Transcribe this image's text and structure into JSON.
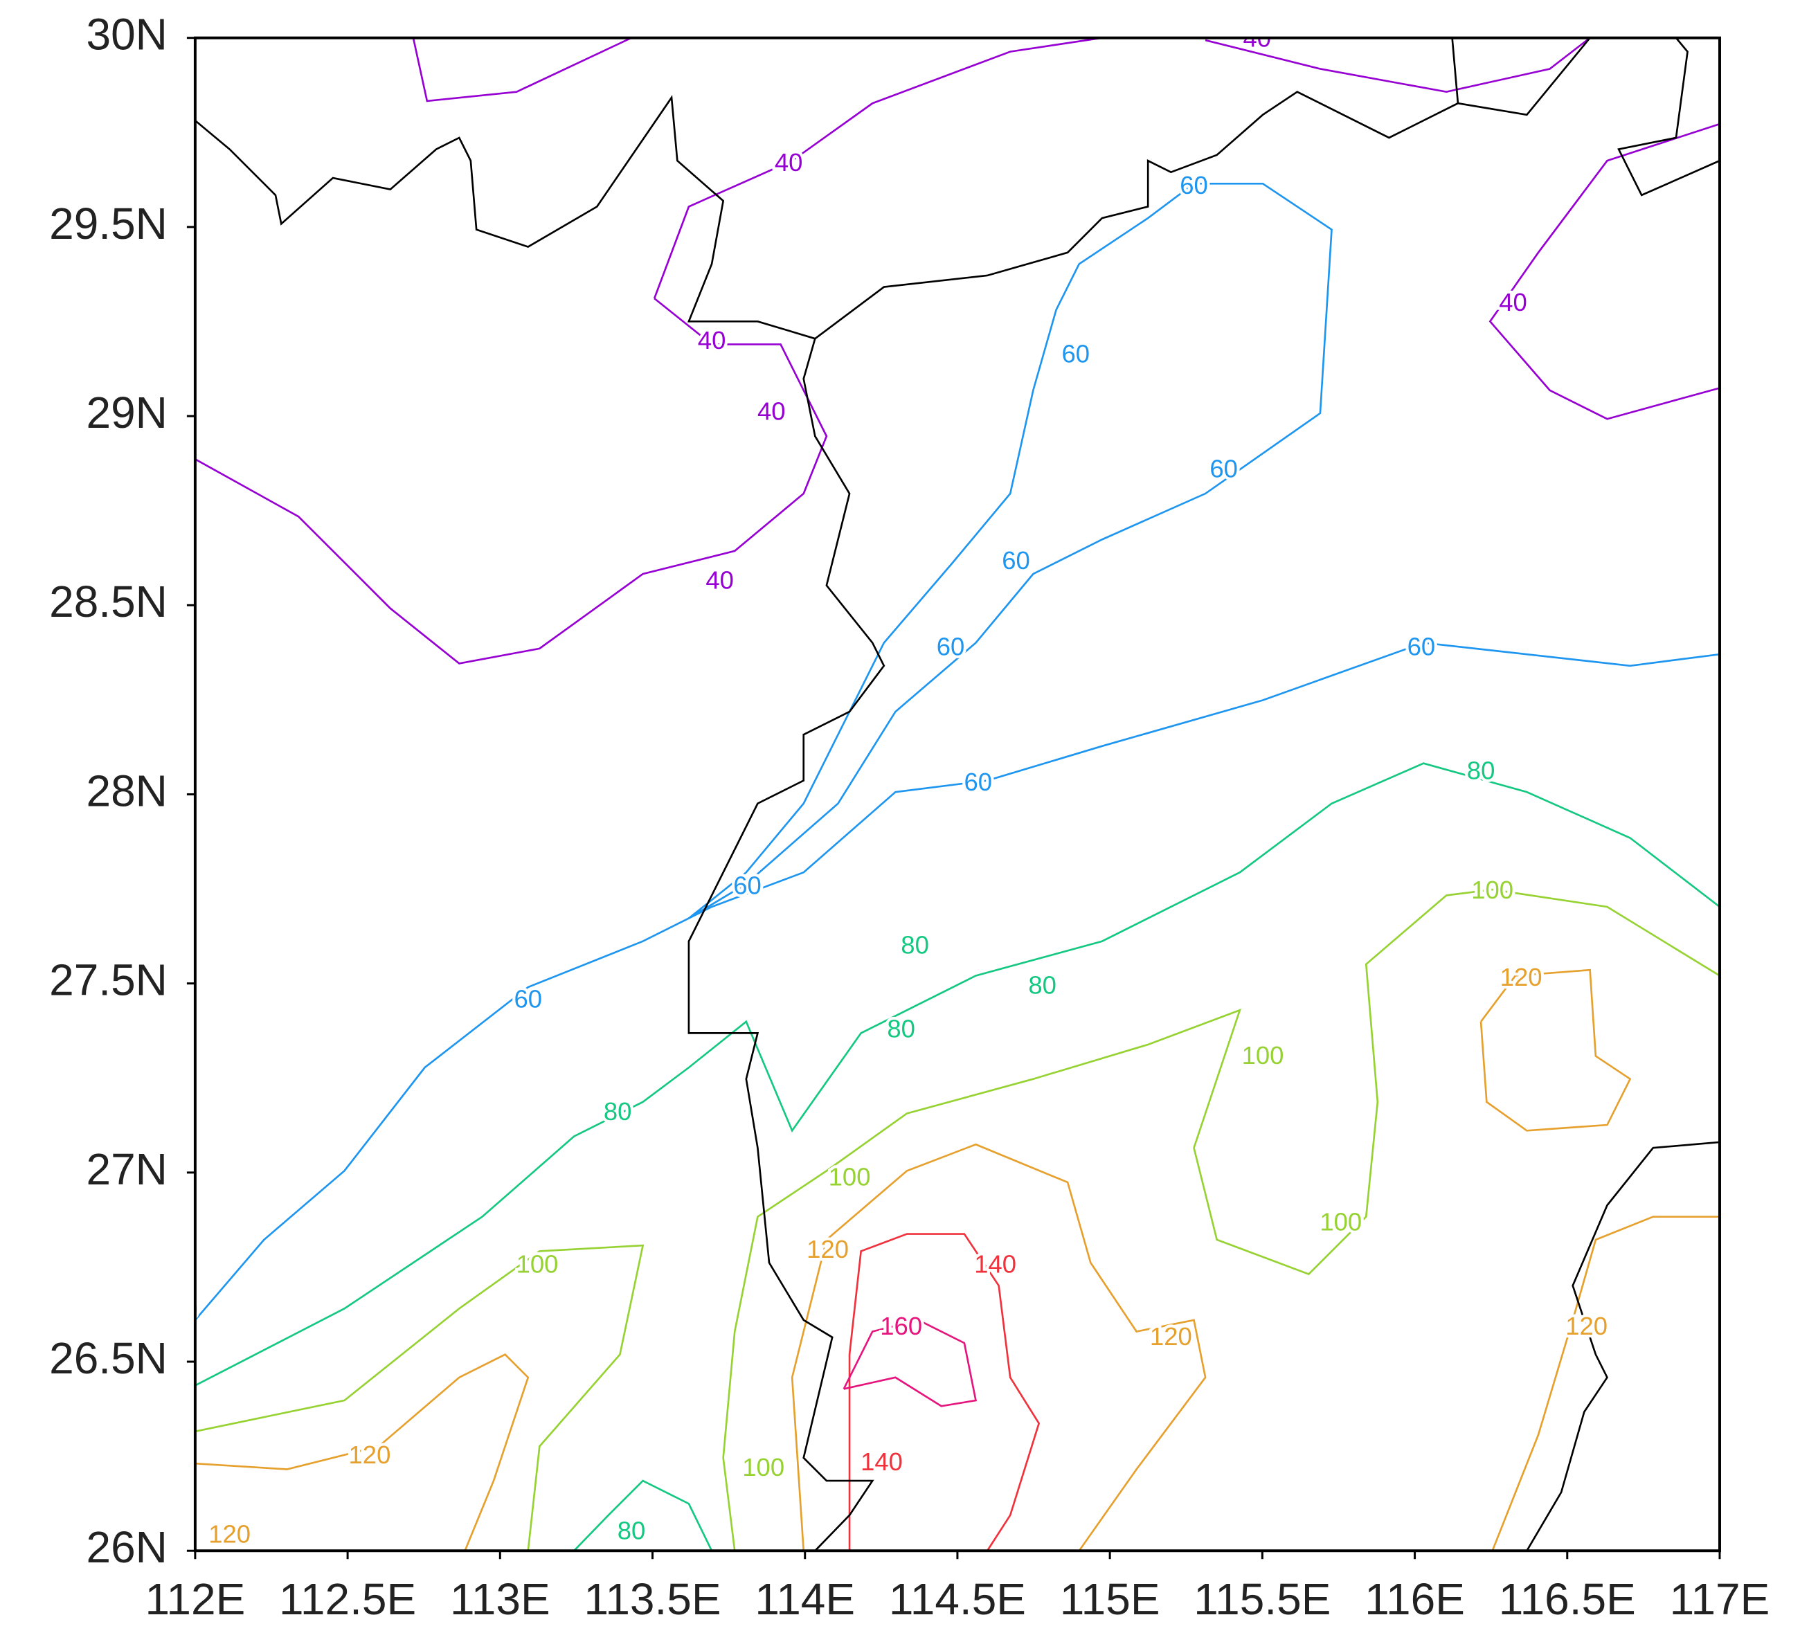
{
  "map_data": {
    "xlim": [
      112,
      117
    ],
    "ylim": [
      26,
      30
    ],
    "xticks": [
      {
        "value": 112,
        "label": "112E"
      },
      {
        "value": 112.5,
        "label": "112.5E"
      },
      {
        "value": 113,
        "label": "113E"
      },
      {
        "value": 113.5,
        "label": "113.5E"
      },
      {
        "value": 114,
        "label": "114E"
      },
      {
        "value": 114.5,
        "label": "114.5E"
      },
      {
        "value": 115,
        "label": "115E"
      },
      {
        "value": 115.5,
        "label": "115.5E"
      },
      {
        "value": 116,
        "label": "116E"
      },
      {
        "value": 116.5,
        "label": "116.5E"
      },
      {
        "value": 117,
        "label": "117E"
      }
    ],
    "yticks": [
      {
        "value": 26,
        "label": "26N"
      },
      {
        "value": 26.5,
        "label": "26.5N"
      },
      {
        "value": 27,
        "label": "27N"
      },
      {
        "value": 27.5,
        "label": "27.5N"
      },
      {
        "value": 28,
        "label": "28N"
      },
      {
        "value": 28.5,
        "label": "28.5N"
      },
      {
        "value": 29,
        "label": "29N"
      },
      {
        "value": 29.5,
        "label": "29.5N"
      },
      {
        "value": 30,
        "label": "30N"
      }
    ],
    "contours": [
      {
        "level": 40,
        "color": "#9600d2"
      },
      {
        "level": 60,
        "color": "#1e96f0"
      },
      {
        "level": 80,
        "color": "#14c882"
      },
      {
        "level": 100,
        "color": "#96d232"
      },
      {
        "level": 120,
        "color": "#e6a02d"
      },
      {
        "level": 140,
        "color": "#f0323c"
      },
      {
        "level": 160,
        "color": "#e6147d"
      }
    ]
  }
}
